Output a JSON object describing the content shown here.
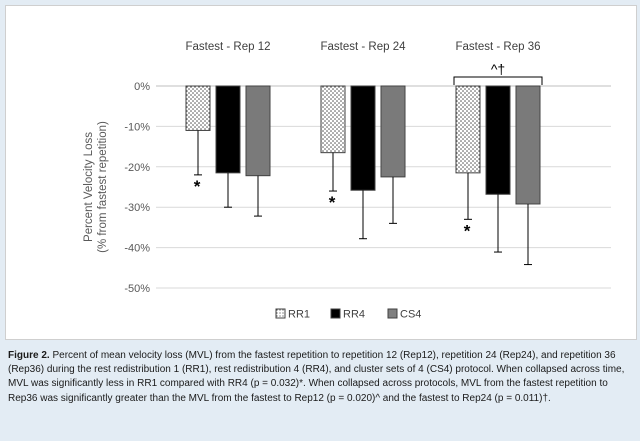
{
  "chart_data": {
    "type": "bar",
    "groups": [
      "Fastest - Rep 12",
      "Fastest - Rep 24",
      "Fastest - Rep 36"
    ],
    "series": [
      {
        "name": "RR1",
        "values": [
          -11,
          -16.5,
          -21.5
        ],
        "errors": [
          11,
          9.5,
          11.5
        ],
        "pattern": "dots"
      },
      {
        "name": "RR4",
        "values": [
          -21.5,
          -25.8,
          -26.8
        ],
        "errors": [
          8.5,
          12,
          14.3
        ],
        "color": "#000000"
      },
      {
        "name": "CS4",
        "values": [
          -22.2,
          -22.5,
          -29.2
        ],
        "errors": [
          10,
          11.5,
          15
        ],
        "color": "#7f7f7f"
      }
    ],
    "y_ticks": [
      "0%",
      "-10%",
      "-20%",
      "-30%",
      "-40%",
      "-50%"
    ],
    "ylim": [
      -50,
      0
    ],
    "ylabel_line1": "Percent Velocity Loss",
    "ylabel_line2": "(% from fastest repetition)",
    "significance_marks": [
      {
        "text": "*",
        "group": 0,
        "series": 0
      },
      {
        "text": "*",
        "group": 1,
        "series": 0
      },
      {
        "text": "*",
        "group": 2,
        "series": 0
      }
    ],
    "bracket_label": "^†",
    "legend_position": "bottom"
  },
  "caption": {
    "label": "Figure 2.",
    "text": " Percent of mean velocity loss (MVL) from the fastest repetition to repetition 12 (Rep12), repetition 24 (Rep24), and repetition 36 (Rep36) during the rest redistribution 1 (RR1), rest redistribution 4 (RR4), and cluster sets of 4 (CS4) protocol. When collapsed across time, MVL was significantly less in RR1 compared with RR4 (p = 0.032)*. When collapsed across protocols, MVL from the fastest repetition to Rep36 was significantly greater than the MVL from the fastest to Rep12 (p = 0.020)^ and the fastest to Rep24 (p = 0.011)†."
  }
}
